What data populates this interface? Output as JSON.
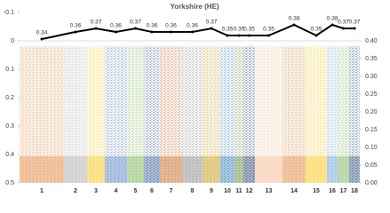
{
  "chart_data": {
    "type": "manhattan-line",
    "title": "Yorkshire (HE)",
    "categories": [
      "1",
      "2",
      "3",
      "4",
      "5",
      "6",
      "7",
      "8",
      "9",
      "10",
      "11",
      "12",
      "13",
      "14",
      "15",
      "16",
      "17",
      "18"
    ],
    "colors": [
      "#e07b2a",
      "#a6a6a6",
      "#f2c200",
      "#4a78c2",
      "#70ad47",
      "#2f5597",
      "#c55a11",
      "#7f7f7f",
      "#bf9000",
      "#2e75b6",
      "#548235",
      "#203864",
      "#f4b183",
      "#e07b2a",
      "#ffc000",
      "#5b9bd5",
      "#70ad47",
      "#264478"
    ],
    "ylim": [
      -0.1,
      0.5
    ],
    "yticks": [
      -0.1,
      0,
      0.1,
      0.2,
      0.3,
      0.4,
      0.5
    ],
    "y_inverted": true,
    "y2lim": [
      0,
      0.4
    ],
    "y2ticks": [
      {
        "value": 0.4,
        "label": "0.40"
      },
      {
        "value": 0.35,
        "label": "0.35"
      },
      {
        "value": 0.3,
        "label": "0.30"
      },
      {
        "value": 0.25,
        "label": "0.25"
      },
      {
        "value": 0.2,
        "label": "0.20"
      },
      {
        "value": 0.15,
        "label": "0.15"
      },
      {
        "value": 0.1,
        "label": "0.10"
      },
      {
        "value": 0.05,
        "label": "0.05"
      },
      {
        "value": 0,
        "label": "0.00"
      }
    ],
    "y3lim": [
      0.3,
      0.4
    ],
    "series": [
      {
        "name": "HE",
        "color": "#000000",
        "axis": "y3",
        "values": [
          0.34,
          0.36,
          0.37,
          0.36,
          0.37,
          0.36,
          0.36,
          0.36,
          0.37,
          0.35,
          0.35,
          0.35,
          0.35,
          0.38,
          0.35,
          0.38,
          0.37,
          0.37
        ]
      }
    ]
  }
}
